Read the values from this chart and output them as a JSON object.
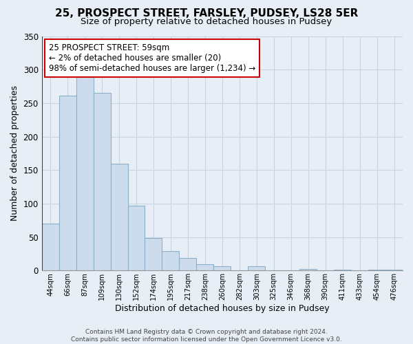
{
  "title": "25, PROSPECT STREET, FARSLEY, PUDSEY, LS28 5ER",
  "subtitle": "Size of property relative to detached houses in Pudsey",
  "xlabel": "Distribution of detached houses by size in Pudsey",
  "ylabel": "Number of detached properties",
  "bar_labels": [
    "44sqm",
    "66sqm",
    "87sqm",
    "109sqm",
    "130sqm",
    "152sqm",
    "174sqm",
    "195sqm",
    "217sqm",
    "238sqm",
    "260sqm",
    "282sqm",
    "303sqm",
    "325sqm",
    "346sqm",
    "368sqm",
    "390sqm",
    "411sqm",
    "433sqm",
    "454sqm",
    "476sqm"
  ],
  "bar_values": [
    70,
    261,
    293,
    265,
    160,
    97,
    49,
    29,
    19,
    10,
    6,
    0,
    6,
    0,
    0,
    2,
    0,
    1,
    0,
    1,
    1
  ],
  "bar_color": "#cddcec",
  "bar_edge_color": "#8aafc8",
  "ylim": [
    0,
    350
  ],
  "yticks": [
    0,
    50,
    100,
    150,
    200,
    250,
    300,
    350
  ],
  "marker_line_color": "#cc0000",
  "annotation_line1": "25 PROSPECT STREET: 59sqm",
  "annotation_line2": "← 2% of detached houses are smaller (20)",
  "annotation_line3": "98% of semi-detached houses are larger (1,234) →",
  "annotation_box_color": "#ffffff",
  "annotation_box_edge": "#cc0000",
  "footer_text": "Contains HM Land Registry data © Crown copyright and database right 2024.\nContains public sector information licensed under the Open Government Licence v3.0.",
  "background_color": "#e8eef5",
  "grid_color": "#c8d4e0",
  "title_fontsize": 11,
  "subtitle_fontsize": 9.5
}
